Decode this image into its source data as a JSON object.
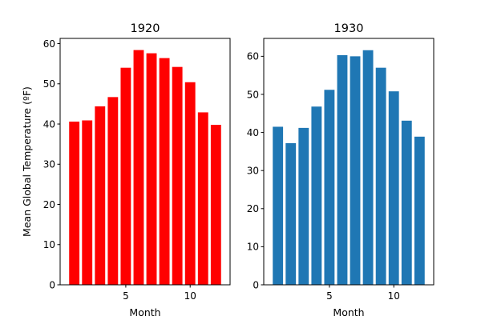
{
  "chart_data": [
    {
      "type": "bar",
      "title": "1920",
      "xlabel": "Month",
      "ylabel": "Mean Global Temperature (ºF)",
      "color": "#ff0000",
      "x": [
        1,
        2,
        3,
        4,
        5,
        6,
        7,
        8,
        9,
        10,
        11,
        12
      ],
      "values": [
        40.6,
        40.9,
        44.4,
        46.7,
        54.0,
        58.4,
        57.6,
        56.4,
        54.2,
        50.4,
        42.9,
        39.8
      ],
      "xticks": [
        5,
        10
      ],
      "yticks": [
        0,
        10,
        20,
        30,
        40,
        50,
        60
      ],
      "xlim": [
        -0.1,
        13.1
      ],
      "ylim": [
        0,
        61.3
      ]
    },
    {
      "type": "bar",
      "title": "1930",
      "xlabel": "Month",
      "ylabel": "",
      "color": "#1f77b4",
      "x": [
        1,
        2,
        3,
        4,
        5,
        6,
        7,
        8,
        9,
        10,
        11,
        12
      ],
      "values": [
        41.5,
        37.2,
        41.2,
        46.8,
        51.2,
        60.3,
        60.0,
        61.6,
        57.0,
        50.8,
        43.1,
        38.9
      ],
      "xticks": [
        5,
        10
      ],
      "yticks": [
        0,
        10,
        20,
        30,
        40,
        50,
        60
      ],
      "xlim": [
        -0.1,
        13.1
      ],
      "ylim": [
        0,
        64.7
      ]
    }
  ]
}
